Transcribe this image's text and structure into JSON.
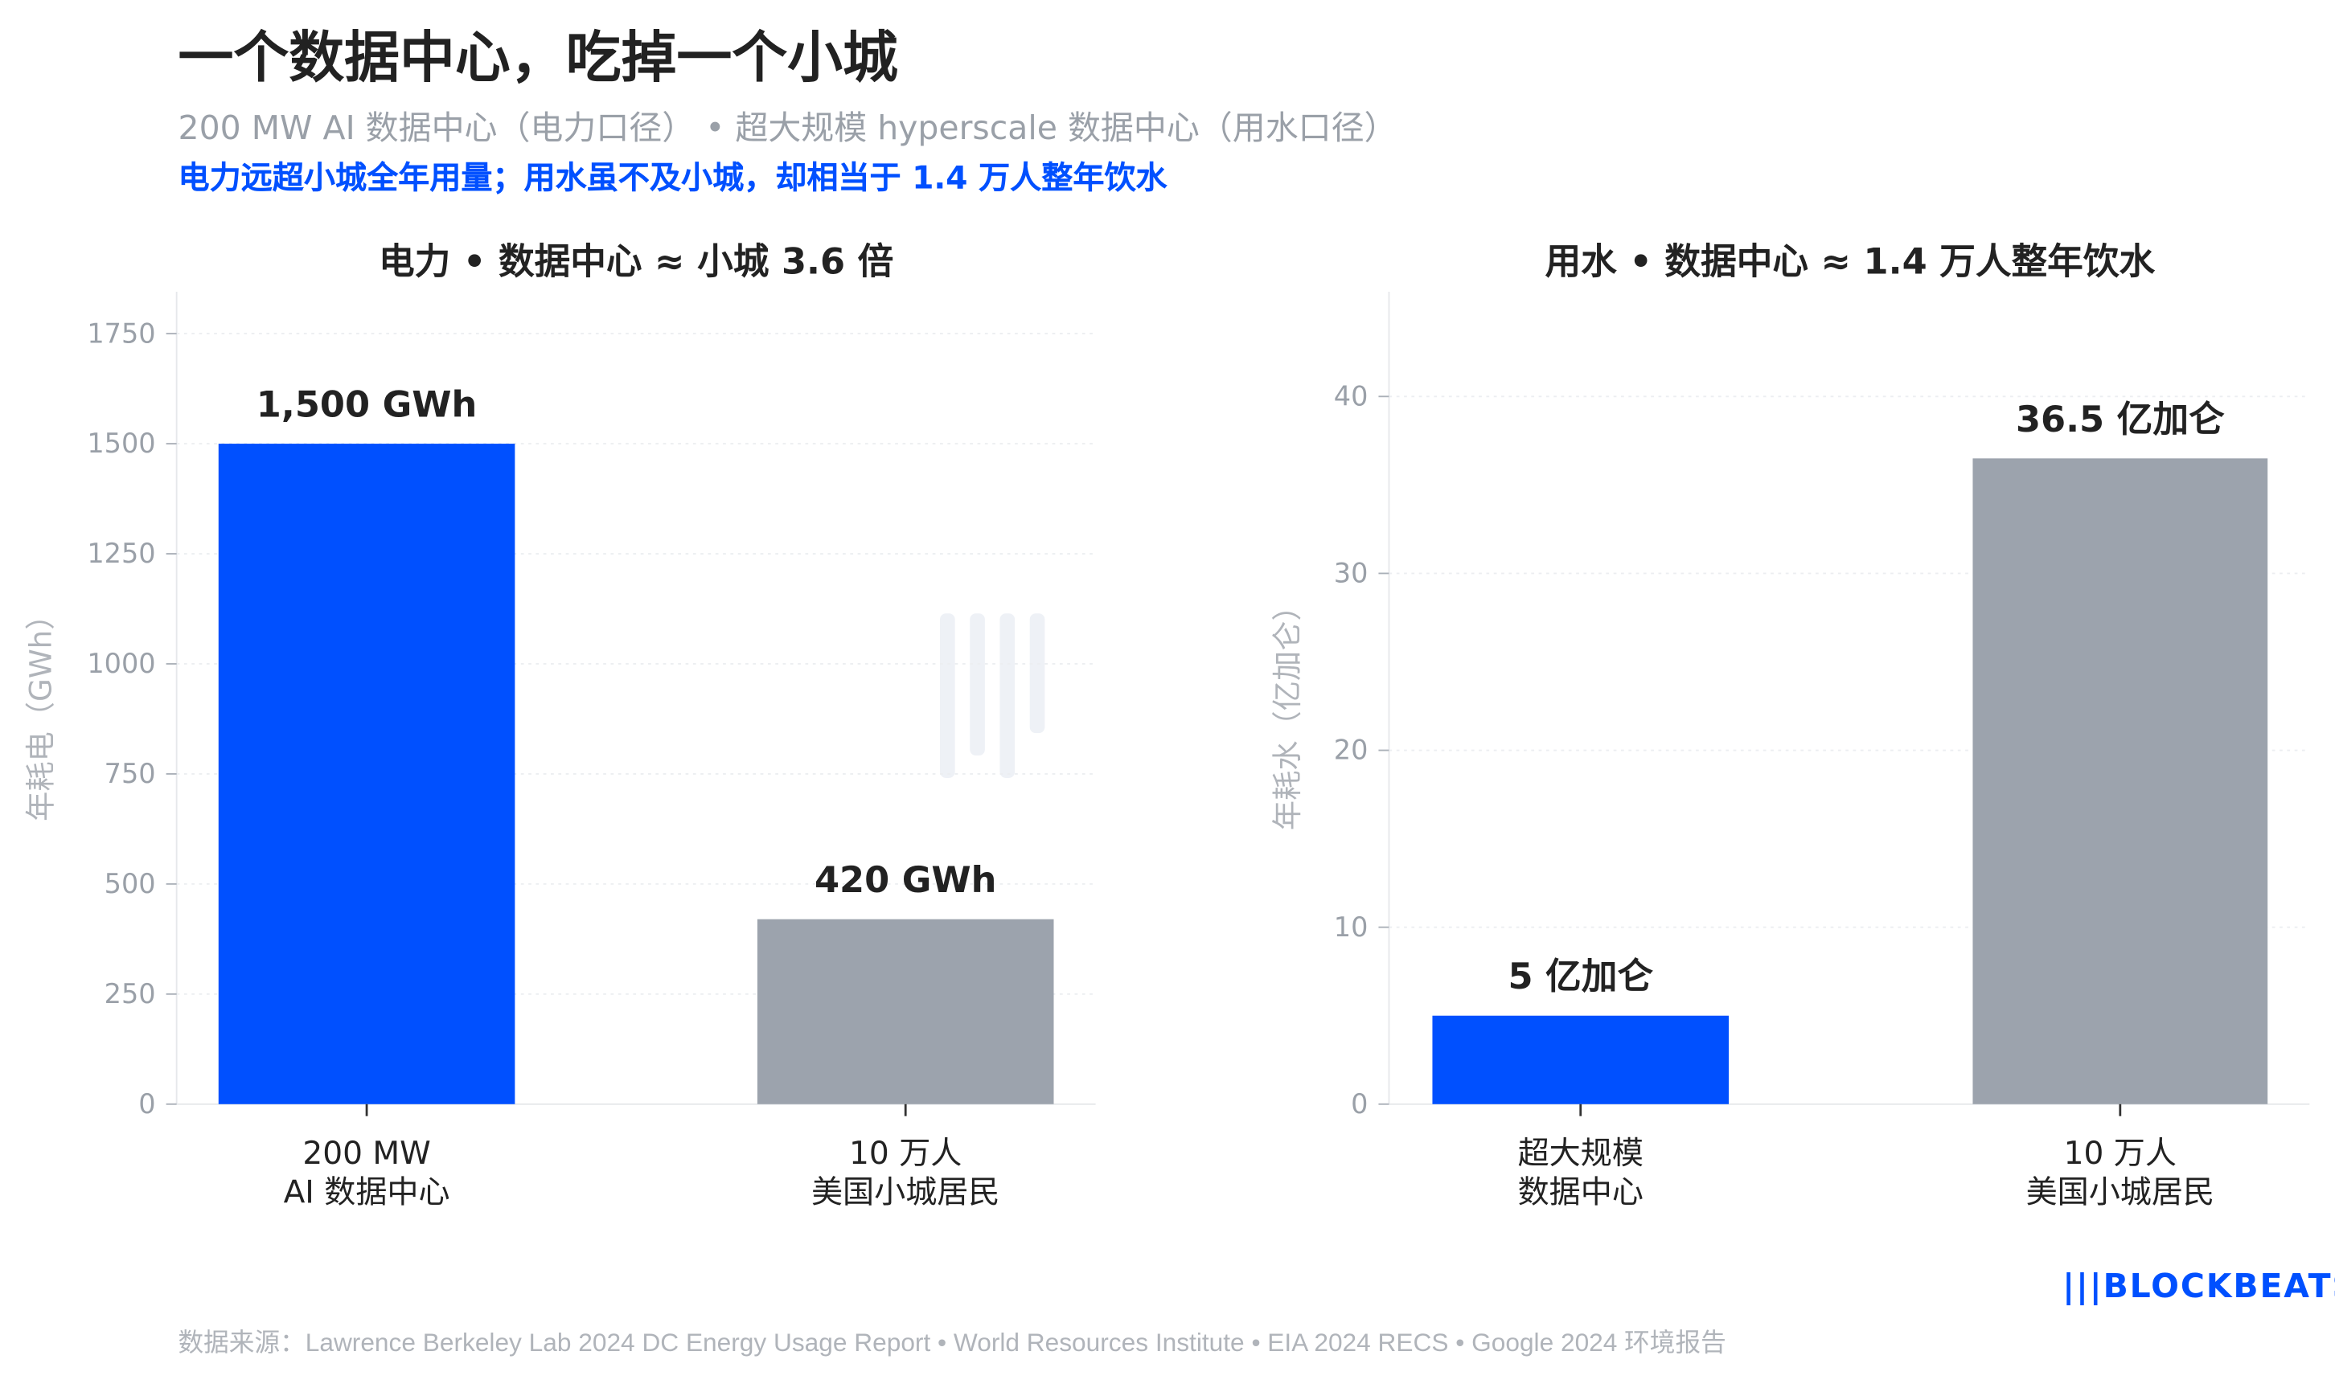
{
  "header": {
    "title": "一个数据中心，吃掉一个小城",
    "subtitle": "200 MW AI 数据中心（电力口径）  • 超大规模 hyperscale 数据中心（用水口径）",
    "highlight": "电力远超小城全年用量；用水虽不及小城，却相当于 1.4 万人整年饮水"
  },
  "footer": {
    "source": "数据来源：Lawrence Berkeley Lab 2024 DC Energy Usage Report  •  World Resources Institute  •  EIA 2024 RECS  •  Google 2024 环境报告",
    "logo": "BLOCKBEATS",
    "watermark": "律动 BLOCKBEATS"
  },
  "colors": {
    "datacenter": "#0050ff",
    "town": "#9ca3ad"
  },
  "chart_data": [
    {
      "type": "bar",
      "title": "电力  •  数据中心 ≈ 小城 3.6 倍",
      "ylabel": "年耗电（GWh）",
      "xlabel": "",
      "ylim": [
        0,
        1800
      ],
      "yticks": [
        0,
        250,
        500,
        750,
        1000,
        1250,
        1500,
        1750
      ],
      "grid": true,
      "categories": [
        [
          "200 MW",
          "AI 数据中心"
        ],
        [
          "10 万人",
          "美国小城居民"
        ]
      ],
      "values": [
        1500,
        420
      ],
      "data_labels": [
        "1,500 GWh",
        "420 GWh"
      ]
    },
    {
      "type": "bar",
      "title": "用水  •  数据中心 ≈ 1.4 万人整年饮水",
      "ylabel": "年耗水（亿加仑）",
      "xlabel": "",
      "ylim": [
        0,
        45
      ],
      "yticks": [
        0,
        10,
        20,
        30,
        40
      ],
      "grid": true,
      "categories": [
        [
          "超大规模",
          "数据中心"
        ],
        [
          "10 万人",
          "美国小城居民"
        ]
      ],
      "values": [
        5,
        36.5
      ],
      "data_labels": [
        "5 亿加仑",
        "36.5 亿加仑"
      ]
    }
  ]
}
